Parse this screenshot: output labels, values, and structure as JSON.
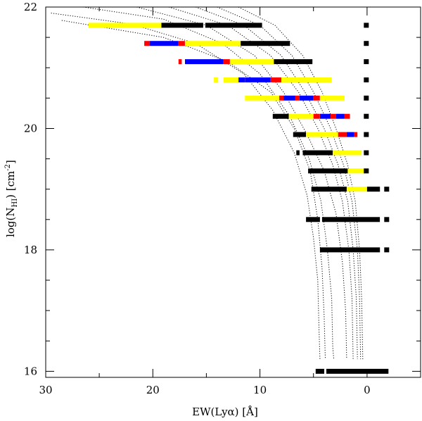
{
  "chart_data": {
    "type": "horizontal-bar-strips",
    "xlabel_main": "EW(Lyα) [Å]",
    "ylabel_main": "log(N",
    "ylabel_sub": "HI",
    "ylabel_rest": ") [cm",
    "ylabel_sup": "-2",
    "ylabel_close": "]",
    "xlim": [
      30,
      -5
    ],
    "ylim": [
      15.9,
      22
    ],
    "x_ticks": [
      30,
      20,
      10,
      0
    ],
    "x_tick_labels": [
      "30",
      "20",
      "10",
      "0"
    ],
    "y_ticks": [
      16,
      18,
      20,
      22
    ],
    "y_tick_labels": [
      "16",
      "18",
      "20",
      "22"
    ],
    "colors": {
      "black": "#000000",
      "yellow": "#ffff00",
      "red": "#ff0000",
      "blue": "#0000ff"
    },
    "rows": [
      {
        "y": 21.7,
        "segments": [
          [
            26,
            19.2,
            "yellow"
          ],
          [
            19.2,
            15.3,
            "black"
          ],
          [
            15.1,
            9.8,
            "black"
          ]
        ],
        "marker": [
          0.1
        ]
      },
      {
        "y": 21.4,
        "segments": [
          [
            20.8,
            20.3,
            "red"
          ],
          [
            20.3,
            17.6,
            "blue"
          ],
          [
            17.6,
            17.0,
            "red"
          ],
          [
            17.0,
            11.8,
            "yellow"
          ],
          [
            11.8,
            7.2,
            "black"
          ]
        ],
        "marker": [
          0.1
        ]
      },
      {
        "y": 21.1,
        "segments": [
          [
            17.6,
            17.3,
            "red"
          ],
          [
            17.0,
            13.4,
            "blue"
          ],
          [
            13.4,
            12.8,
            "red"
          ],
          [
            12.8,
            8.7,
            "yellow"
          ],
          [
            8.7,
            5.1,
            "black"
          ]
        ],
        "marker": [
          0.1
        ]
      },
      {
        "y": 20.8,
        "segments": [
          [
            14.3,
            13.9,
            "yellow"
          ],
          [
            13.4,
            12.0,
            "yellow"
          ],
          [
            12.0,
            11.4,
            "blue"
          ],
          [
            11.4,
            9.0,
            "blue"
          ],
          [
            9.0,
            8.0,
            "red"
          ],
          [
            8.0,
            3.3,
            "yellow"
          ]
        ],
        "marker": [
          0.1
        ]
      },
      {
        "y": 20.5,
        "segments": [
          [
            11.4,
            8.2,
            "yellow"
          ],
          [
            8.2,
            7.8,
            "red"
          ],
          [
            7.8,
            6.7,
            "blue"
          ],
          [
            6.7,
            6.3,
            "red"
          ],
          [
            6.3,
            5.0,
            "blue"
          ],
          [
            5.0,
            4.4,
            "red"
          ],
          [
            4.4,
            2.1,
            "yellow"
          ]
        ],
        "marker": [
          0.1
        ]
      },
      {
        "y": 20.2,
        "segments": [
          [
            8.8,
            7.3,
            "black"
          ],
          [
            7.3,
            5.0,
            "yellow"
          ],
          [
            5.0,
            4.4,
            "red"
          ],
          [
            4.4,
            3.4,
            "blue"
          ],
          [
            3.4,
            2.9,
            "red"
          ],
          [
            2.9,
            2.1,
            "blue"
          ],
          [
            2.1,
            1.6,
            "red"
          ]
        ],
        "marker": [
          0.1
        ]
      },
      {
        "y": 19.9,
        "segments": [
          [
            6.9,
            5.7,
            "black"
          ],
          [
            5.7,
            2.7,
            "yellow"
          ],
          [
            2.7,
            1.9,
            "red"
          ],
          [
            1.9,
            1.2,
            "blue"
          ],
          [
            1.2,
            0.9,
            "red"
          ]
        ],
        "marker": [
          0.1
        ]
      },
      {
        "y": 19.6,
        "segments": [
          [
            6.6,
            6.3,
            "black"
          ],
          [
            6.0,
            3.2,
            "black"
          ],
          [
            3.2,
            0.5,
            "yellow"
          ]
        ],
        "marker": [
          0.1
        ]
      },
      {
        "y": 19.3,
        "segments": [
          [
            5.5,
            1.8,
            "black"
          ],
          [
            1.8,
            0.2,
            "yellow"
          ]
        ],
        "marker": [
          0.1
        ]
      },
      {
        "y": 19.0,
        "segments": [
          [
            5.2,
            1.9,
            "black"
          ],
          [
            1.9,
            0.0,
            "yellow"
          ],
          [
            0.0,
            -1.2,
            "black"
          ]
        ],
        "marker": [
          -1.8
        ]
      },
      {
        "y": 18.5,
        "segments": [
          [
            5.7,
            4.4,
            "black"
          ],
          [
            4.2,
            -1.2,
            "black"
          ]
        ],
        "marker": [
          -1.8
        ]
      },
      {
        "y": 18.0,
        "segments": [
          [
            4.4,
            -1.2,
            "black"
          ]
        ],
        "marker": [
          -1.8
        ]
      },
      {
        "y": 16.0,
        "segments": [
          [
            4.8,
            4.0,
            "black"
          ],
          [
            3.8,
            -2.0,
            "black"
          ]
        ],
        "marker": []
      }
    ],
    "curves": [
      {
        "name": "curve-1",
        "points": [
          [
            28.5,
            21.78
          ],
          [
            19.0,
            21.5
          ],
          [
            13.0,
            21.1
          ],
          [
            9.0,
            20.6
          ],
          [
            6.8,
            20.0
          ],
          [
            5.3,
            19.3
          ],
          [
            4.6,
            18.5
          ],
          [
            4.2,
            17.7
          ],
          [
            4.0,
            16.9
          ],
          [
            3.9,
            16.2
          ]
        ]
      },
      {
        "name": "curve-2",
        "points": [
          [
            29.5,
            21.9
          ],
          [
            22.0,
            21.72
          ],
          [
            16.0,
            21.4
          ],
          [
            11.5,
            20.9
          ],
          [
            8.8,
            20.3
          ],
          [
            6.8,
            19.6
          ],
          [
            5.6,
            18.9
          ],
          [
            5.0,
            18.2
          ],
          [
            4.6,
            17.5
          ],
          [
            4.5,
            16.8
          ],
          [
            4.4,
            16.2
          ]
        ]
      },
      {
        "name": "curve-3",
        "points": [
          [
            26.5,
            22.0
          ],
          [
            19.0,
            21.8
          ],
          [
            13.5,
            21.4
          ],
          [
            10.0,
            20.9
          ],
          [
            7.2,
            20.2
          ],
          [
            5.4,
            19.5
          ],
          [
            4.3,
            18.8
          ],
          [
            3.7,
            18.0
          ],
          [
            3.3,
            17.2
          ],
          [
            3.2,
            16.4
          ],
          [
            3.1,
            16.2
          ]
        ]
      },
      {
        "name": "curve-4",
        "points": [
          [
            21.5,
            22.0
          ],
          [
            15.0,
            21.7
          ],
          [
            10.5,
            21.2
          ],
          [
            7.8,
            20.6
          ],
          [
            5.6,
            19.9
          ],
          [
            4.0,
            19.3
          ],
          [
            2.9,
            18.6
          ],
          [
            2.3,
            17.8
          ],
          [
            2.0,
            17.0
          ],
          [
            1.9,
            16.2
          ]
        ]
      },
      {
        "name": "curve-5",
        "points": [
          [
            18.5,
            22.0
          ],
          [
            13.0,
            21.7
          ],
          [
            9.0,
            21.2
          ],
          [
            6.4,
            20.6
          ],
          [
            4.6,
            20.0
          ],
          [
            3.2,
            19.4
          ],
          [
            2.3,
            18.8
          ],
          [
            1.7,
            18.0
          ],
          [
            1.4,
            17.2
          ],
          [
            1.3,
            16.2
          ]
        ]
      },
      {
        "name": "curve-6",
        "points": [
          [
            16.0,
            22.0
          ],
          [
            11.5,
            21.7
          ],
          [
            8.0,
            21.2
          ],
          [
            5.8,
            20.6
          ],
          [
            4.0,
            20.0
          ],
          [
            2.7,
            19.4
          ],
          [
            1.8,
            18.8
          ],
          [
            1.3,
            18.0
          ],
          [
            1.0,
            17.2
          ],
          [
            0.9,
            16.2
          ]
        ]
      },
      {
        "name": "curve-7",
        "points": [
          [
            14.0,
            22.0
          ],
          [
            10.0,
            21.7
          ],
          [
            7.0,
            21.2
          ],
          [
            5.0,
            20.6
          ],
          [
            3.4,
            20.0
          ],
          [
            2.2,
            19.4
          ],
          [
            1.4,
            18.8
          ],
          [
            0.9,
            18.0
          ],
          [
            0.7,
            17.2
          ],
          [
            0.6,
            16.2
          ]
        ]
      },
      {
        "name": "curve-8",
        "points": [
          [
            12.0,
            22.0
          ],
          [
            8.6,
            21.7
          ],
          [
            6.0,
            21.2
          ],
          [
            4.2,
            20.6
          ],
          [
            2.9,
            20.0
          ],
          [
            1.8,
            19.4
          ],
          [
            1.1,
            18.8
          ],
          [
            0.7,
            18.0
          ],
          [
            0.5,
            17.2
          ],
          [
            0.4,
            16.2
          ]
        ]
      }
    ]
  }
}
